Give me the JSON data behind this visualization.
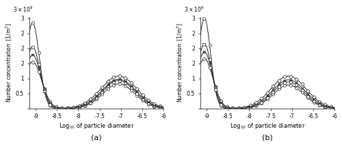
{
  "xlim": [
    -9.15,
    -6.0
  ],
  "ylim": [
    0,
    305000000.0
  ],
  "yticks": [
    0,
    50000000.0,
    100000000.0,
    150000000.0,
    200000000.0,
    250000000.0,
    300000000.0
  ],
  "xticks": [
    -9,
    -8.5,
    -8,
    -7.5,
    -7,
    -6.5,
    -6
  ],
  "xlabel": "Log$_{10}$ of particle diameter",
  "ylabel": "Number concentration  [1/m$^3$]",
  "subplot_labels": [
    "(a)",
    "(b)"
  ],
  "background_color": "#ffffff",
  "figsize": [
    5.0,
    2.24
  ],
  "dpi": 100
}
